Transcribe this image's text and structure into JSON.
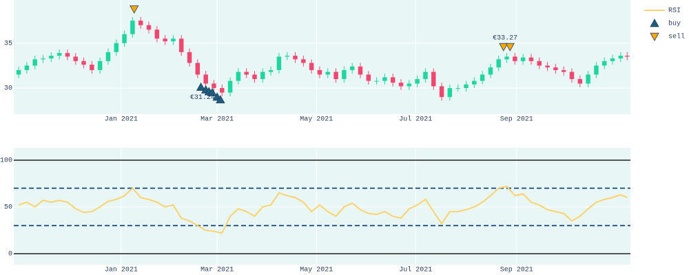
{
  "chart_data": [
    {
      "type": "candlestick",
      "x": [
        "2020-10-30",
        "2020-11-04",
        "2020-11-09",
        "2020-11-14",
        "2020-11-19",
        "2020-11-24",
        "2020-11-29",
        "2020-12-04",
        "2020-12-09",
        "2020-12-14",
        "2020-12-19",
        "2020-12-24",
        "2020-12-29",
        "2021-01-03",
        "2021-01-08",
        "2021-01-13",
        "2021-01-18",
        "2021-01-23",
        "2021-01-28",
        "2021-02-02",
        "2021-02-07",
        "2021-02-12",
        "2021-02-17",
        "2021-02-22",
        "2021-02-27",
        "2021-03-04",
        "2021-03-09",
        "2021-03-14",
        "2021-03-19",
        "2021-03-24",
        "2021-03-29",
        "2021-04-03",
        "2021-04-08",
        "2021-04-13",
        "2021-04-18",
        "2021-04-23",
        "2021-04-28",
        "2021-05-03",
        "2021-05-08",
        "2021-05-13",
        "2021-05-18",
        "2021-05-23",
        "2021-05-28",
        "2021-06-02",
        "2021-06-07",
        "2021-06-12",
        "2021-06-17",
        "2021-06-22",
        "2021-06-27",
        "2021-07-02",
        "2021-07-07",
        "2021-07-12",
        "2021-07-17",
        "2021-07-22",
        "2021-07-27",
        "2021-08-01",
        "2021-08-06",
        "2021-08-11",
        "2021-08-16",
        "2021-08-21",
        "2021-08-26",
        "2021-08-31",
        "2021-09-05",
        "2021-09-10",
        "2021-09-15",
        "2021-09-20",
        "2021-09-25",
        "2021-09-30",
        "2021-10-05",
        "2021-10-10",
        "2021-10-15",
        "2021-10-20",
        "2021-10-25",
        "2021-10-30",
        "2021-11-04",
        "2021-11-08"
      ],
      "open": [
        31.5,
        32.0,
        32.5,
        33.2,
        33.3,
        33.6,
        33.9,
        33.5,
        33.0,
        32.6,
        32.0,
        33.0,
        34.0,
        35.0,
        36.0,
        37.5,
        37.0,
        36.5,
        35.5,
        35.2,
        35.5,
        34.0,
        32.8,
        31.5,
        30.5,
        30.0,
        29.5,
        30.8,
        31.8,
        31.5,
        31.0,
        31.8,
        32.0,
        33.5,
        33.6,
        33.2,
        32.8,
        32.0,
        31.5,
        31.8,
        31.0,
        32.0,
        32.4,
        31.5,
        30.8,
        30.8,
        31.2,
        30.6,
        30.2,
        30.5,
        31.0,
        31.8,
        30.2,
        29.0,
        30.0,
        30.0,
        30.4,
        30.8,
        31.5,
        32.3,
        33.2,
        33.5,
        33.0,
        33.4,
        33.0,
        32.5,
        32.3,
        32.0,
        31.8,
        31.0,
        30.5,
        31.5,
        32.5,
        33.0,
        33.3,
        33.6
      ],
      "high": [
        32.4,
        32.9,
        33.6,
        33.7,
        34.0,
        34.3,
        34.3,
        33.9,
        33.4,
        33.0,
        33.4,
        34.4,
        35.4,
        36.4,
        37.9,
        37.9,
        37.4,
        36.9,
        35.9,
        35.9,
        35.9,
        34.4,
        33.2,
        31.9,
        30.9,
        30.4,
        31.2,
        32.2,
        32.2,
        31.9,
        32.2,
        32.4,
        33.9,
        34.0,
        34.0,
        33.6,
        33.2,
        32.4,
        32.2,
        32.2,
        32.4,
        32.8,
        32.8,
        31.9,
        31.2,
        31.6,
        31.6,
        31.0,
        30.9,
        31.4,
        32.2,
        32.2,
        30.6,
        30.4,
        30.4,
        30.8,
        31.2,
        31.9,
        32.7,
        33.6,
        33.9,
        33.9,
        33.8,
        33.8,
        33.4,
        32.9,
        32.7,
        32.4,
        32.2,
        31.4,
        31.9,
        32.9,
        33.4,
        33.7,
        34.0,
        34.0
      ],
      "low": [
        31.1,
        31.6,
        32.1,
        32.8,
        32.9,
        33.2,
        33.1,
        32.6,
        32.2,
        31.6,
        31.6,
        32.6,
        33.6,
        34.6,
        35.6,
        36.6,
        36.1,
        35.1,
        34.8,
        34.8,
        33.6,
        32.4,
        31.1,
        30.1,
        29.6,
        29.1,
        29.1,
        30.4,
        31.1,
        30.6,
        30.6,
        31.4,
        31.6,
        33.1,
        32.8,
        32.4,
        31.6,
        31.1,
        31.1,
        30.6,
        30.6,
        31.6,
        31.1,
        30.4,
        30.4,
        30.4,
        30.2,
        29.8,
        29.8,
        30.1,
        30.6,
        29.8,
        28.6,
        28.6,
        29.6,
        29.6,
        30.0,
        30.4,
        31.1,
        31.9,
        32.8,
        32.6,
        32.6,
        32.6,
        32.1,
        31.9,
        31.6,
        31.4,
        30.6,
        30.1,
        30.1,
        31.1,
        32.1,
        32.6,
        32.9,
        33.1
      ],
      "close": [
        32.0,
        32.5,
        33.2,
        33.3,
        33.6,
        33.9,
        33.5,
        33.0,
        32.6,
        32.0,
        33.0,
        34.0,
        35.0,
        36.0,
        37.5,
        37.0,
        36.5,
        35.5,
        35.2,
        35.5,
        34.0,
        32.8,
        31.5,
        30.5,
        30.0,
        29.5,
        30.8,
        31.8,
        31.5,
        31.0,
        31.8,
        32.0,
        33.5,
        33.6,
        33.2,
        32.8,
        32.0,
        31.5,
        31.8,
        31.0,
        32.0,
        32.4,
        31.5,
        30.8,
        30.8,
        31.2,
        30.6,
        30.2,
        30.5,
        31.0,
        31.8,
        30.2,
        29.0,
        30.0,
        30.0,
        30.4,
        30.8,
        31.5,
        32.3,
        33.2,
        33.5,
        33.0,
        33.4,
        33.0,
        32.5,
        32.3,
        32.0,
        31.8,
        31.0,
        30.5,
        31.5,
        32.5,
        33.0,
        33.3,
        33.6,
        33.5
      ],
      "increasing_color": "#1fd5a0",
      "decreasing_color": "#ef476f",
      "markers": [
        {
          "name": "buy",
          "symbol": "triangle-up",
          "color": "#1b5e7e",
          "x": [
            "2021-02-19",
            "2021-02-22",
            "2021-02-24",
            "2021-02-26",
            "2021-03-01",
            "2021-03-03"
          ],
          "y": [
            30.1,
            29.8,
            29.6,
            29.5,
            29.0,
            28.7
          ]
        },
        {
          "name": "sell",
          "symbol": "triangle-down",
          "color": "#f5a60a",
          "x": [
            "2021-01-09",
            "2021-08-24",
            "2021-08-28"
          ],
          "y": [
            38.8,
            34.6,
            34.6
          ]
        }
      ],
      "annotations": [
        {
          "text": "€31.24",
          "x": "2021-02-20",
          "y": 29.0
        },
        {
          "text": "€33.27",
          "x": "2021-08-25",
          "y": 35.6
        }
      ],
      "xlim": [
        "2020-10-27",
        "2021-11-10"
      ],
      "xticks": [
        {
          "value": "2021-01-01",
          "label": "Jan 2021"
        },
        {
          "value": "2021-03-01",
          "label": "Mar 2021"
        },
        {
          "value": "2021-05-01",
          "label": "May 2021"
        },
        {
          "value": "2021-07-01",
          "label": "Jul 2021"
        },
        {
          "value": "2021-09-01",
          "label": "Sep 2021"
        }
      ],
      "ylim": [
        27.1,
        39.8
      ],
      "yticks": [
        30,
        35
      ],
      "grid": true
    },
    {
      "type": "line",
      "x": [
        "2020-10-30",
        "2020-11-04",
        "2020-11-09",
        "2020-11-14",
        "2020-11-19",
        "2020-11-24",
        "2020-11-29",
        "2020-12-04",
        "2020-12-09",
        "2020-12-14",
        "2020-12-19",
        "2020-12-24",
        "2020-12-29",
        "2021-01-03",
        "2021-01-08",
        "2021-01-13",
        "2021-01-18",
        "2021-01-23",
        "2021-01-28",
        "2021-02-02",
        "2021-02-07",
        "2021-02-12",
        "2021-02-17",
        "2021-02-22",
        "2021-02-27",
        "2021-03-04",
        "2021-03-09",
        "2021-03-14",
        "2021-03-19",
        "2021-03-24",
        "2021-03-29",
        "2021-04-03",
        "2021-04-08",
        "2021-04-13",
        "2021-04-18",
        "2021-04-23",
        "2021-04-28",
        "2021-05-03",
        "2021-05-08",
        "2021-05-13",
        "2021-05-18",
        "2021-05-23",
        "2021-05-28",
        "2021-06-02",
        "2021-06-07",
        "2021-06-12",
        "2021-06-17",
        "2021-06-22",
        "2021-06-27",
        "2021-07-02",
        "2021-07-07",
        "2021-07-12",
        "2021-07-17",
        "2021-07-22",
        "2021-07-27",
        "2021-08-01",
        "2021-08-06",
        "2021-08-11",
        "2021-08-16",
        "2021-08-21",
        "2021-08-26",
        "2021-08-31",
        "2021-09-05",
        "2021-09-10",
        "2021-09-15",
        "2021-09-20",
        "2021-09-25",
        "2021-09-30",
        "2021-10-05",
        "2021-10-10",
        "2021-10-15",
        "2021-10-20",
        "2021-10-25",
        "2021-10-30",
        "2021-11-04",
        "2021-11-08"
      ],
      "series": [
        {
          "name": "RSI",
          "color": "#fdd26e",
          "values": [
            52,
            55,
            50,
            57,
            55,
            57,
            55,
            48,
            44,
            45,
            50,
            56,
            58,
            62,
            70,
            60,
            58,
            55,
            50,
            52,
            38,
            35,
            30,
            25,
            24,
            22,
            40,
            48,
            45,
            40,
            50,
            52,
            65,
            62,
            60,
            55,
            45,
            52,
            45,
            40,
            50,
            54,
            47,
            43,
            42,
            45,
            40,
            38,
            48,
            52,
            58,
            45,
            32,
            45,
            45,
            47,
            50,
            55,
            62,
            70,
            72,
            62,
            64,
            55,
            52,
            47,
            45,
            43,
            35,
            40,
            48,
            55,
            58,
            60,
            63,
            60
          ]
        }
      ],
      "hlines": [
        {
          "value": 0,
          "style": "solid",
          "color": "#555555"
        },
        {
          "value": 30,
          "style": "dash",
          "color": "#2e5b8f"
        },
        {
          "value": 70,
          "style": "dash",
          "color": "#2e5b8f"
        },
        {
          "value": 100,
          "style": "solid",
          "color": "#555555"
        }
      ],
      "xlim": [
        "2020-10-27",
        "2021-11-10"
      ],
      "xticks": [
        {
          "value": "2021-01-01",
          "label": "Jan 2021"
        },
        {
          "value": "2021-03-01",
          "label": "Mar 2021"
        },
        {
          "value": "2021-05-01",
          "label": "May 2021"
        },
        {
          "value": "2021-07-01",
          "label": "Jul 2021"
        },
        {
          "value": "2021-09-01",
          "label": "Sep 2021"
        }
      ],
      "ylim": [
        -11.8,
        113.2
      ],
      "yticks": [
        0,
        50,
        100
      ],
      "grid": true
    }
  ]
}
